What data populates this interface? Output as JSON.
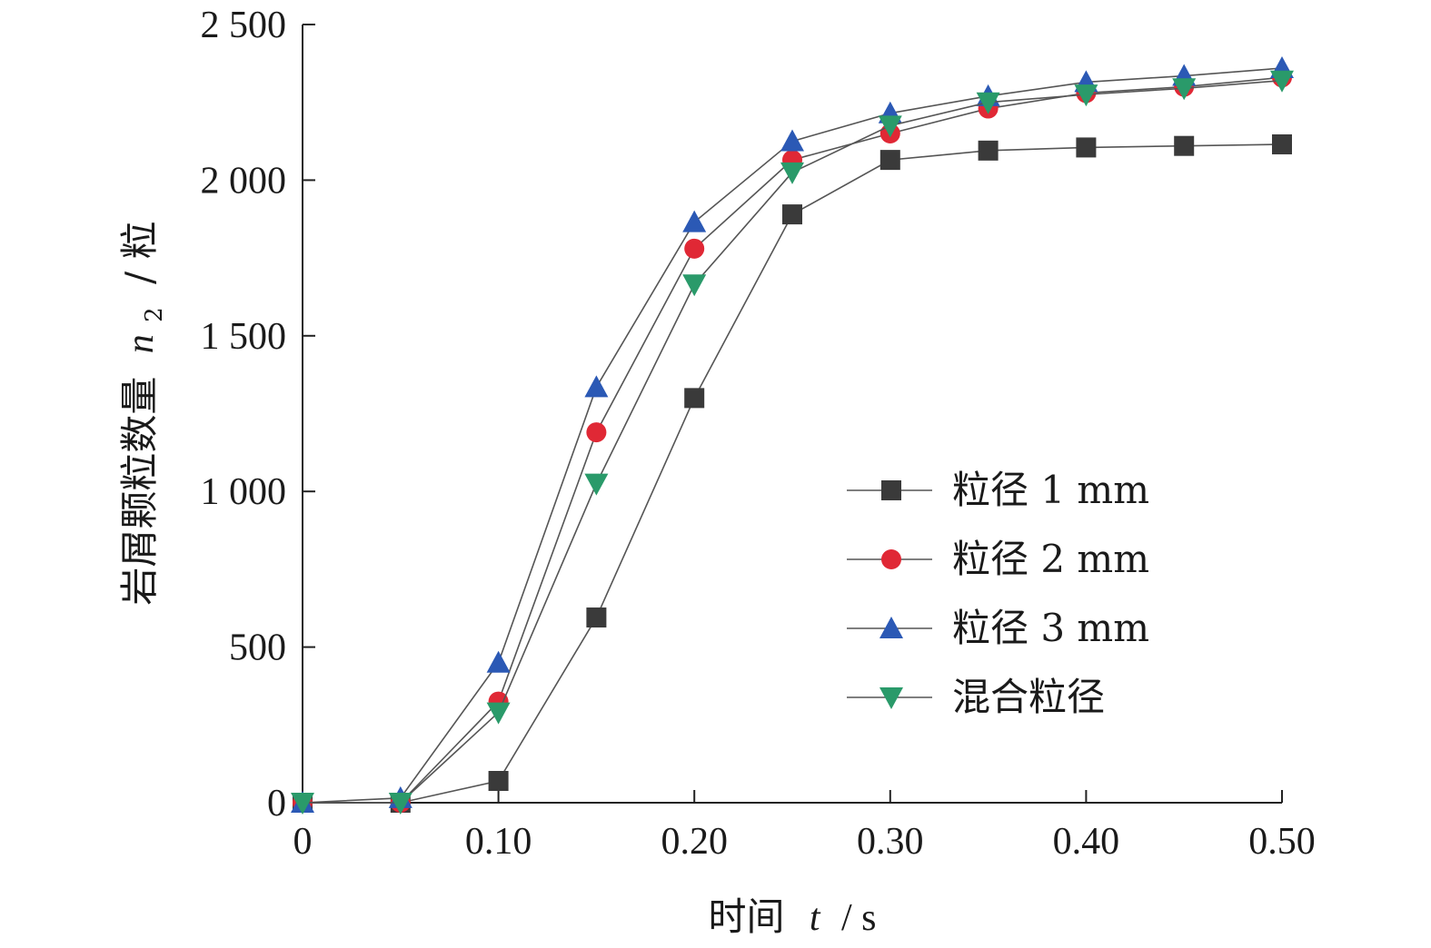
{
  "chart_data": {
    "type": "line",
    "title": "",
    "xlabel_prefix": "时间",
    "xlabel_var": "t",
    "xlabel_unit": "/ s",
    "ylabel_prefix": "岩屑颗粒数量",
    "ylabel_var": "n",
    "ylabel_sub": "2",
    "ylabel_unit": "/ 粒",
    "xlim": [
      0,
      0.5
    ],
    "ylim": [
      0,
      2500
    ],
    "x_ticks": [
      0,
      0.1,
      0.2,
      0.3,
      0.4,
      0.5
    ],
    "x_tick_labels": [
      "0",
      "0.10",
      "0.20",
      "0.30",
      "0.40",
      "0.50"
    ],
    "y_ticks": [
      0,
      500,
      1000,
      1500,
      2000,
      2500
    ],
    "y_tick_labels": [
      "0",
      "500",
      "1 000",
      "1 500",
      "2 000",
      "2 500"
    ],
    "grid": false,
    "legend_position": "center-right",
    "x": [
      0,
      0.05,
      0.1,
      0.15,
      0.2,
      0.25,
      0.3,
      0.35,
      0.4,
      0.45,
      0.5
    ],
    "series": [
      {
        "name": "粒径 1 mm",
        "marker": "square",
        "color": "#3a3a3a",
        "values": [
          0,
          0,
          70,
          595,
          1300,
          1890,
          2065,
          2095,
          2105,
          2110,
          2115
        ]
      },
      {
        "name": "粒径 2 mm",
        "marker": "circle",
        "color": "#e02835",
        "values": [
          0,
          0,
          325,
          1190,
          1780,
          2065,
          2150,
          2230,
          2280,
          2300,
          2330
        ]
      },
      {
        "name": "粒径 3 mm",
        "marker": "triangle-up",
        "color": "#2b59b5",
        "values": [
          0,
          15,
          450,
          1335,
          1865,
          2125,
          2215,
          2270,
          2315,
          2335,
          2360
        ]
      },
      {
        "name": "混合粒径",
        "marker": "triangle-down",
        "color": "#2a9a6a",
        "values": [
          0,
          0,
          290,
          1025,
          1665,
          2025,
          2175,
          2250,
          2275,
          2295,
          2320
        ]
      }
    ]
  }
}
